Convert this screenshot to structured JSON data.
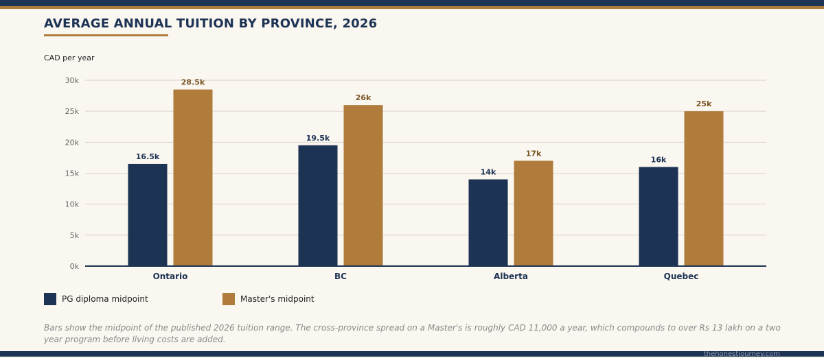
{
  "chart_data": {
    "type": "bar",
    "title": "AVERAGE ANNUAL TUITION BY PROVINCE, 2026",
    "ylabel": "CAD per year",
    "xlabel": "",
    "categories": [
      "Ontario",
      "BC",
      "Alberta",
      "Quebec"
    ],
    "series": [
      {
        "name": "PG diploma midpoint",
        "values": [
          16500,
          19500,
          14000,
          16000
        ],
        "labels": [
          "16.5k",
          "19.5k",
          "14k",
          "16k"
        ],
        "color": "#1c3354"
      },
      {
        "name": "Master's midpoint",
        "values": [
          28500,
          26000,
          17000,
          25000
        ],
        "labels": [
          "28.5k",
          "26k",
          "17k",
          "25k"
        ],
        "color": "#b07c3c"
      }
    ],
    "ylim": [
      0,
      30000
    ],
    "yticks": [
      0,
      5000,
      10000,
      15000,
      20000,
      25000,
      30000
    ],
    "ytick_labels": [
      "0k",
      "5k",
      "10k",
      "15k",
      "20k",
      "25k",
      "30k"
    ],
    "grid": true,
    "legend": "bottom-left"
  },
  "note": "Bars show the midpoint of the published 2026 tuition range. The cross-province spread on a Master's is roughly CAD 11,000 a year, which compounds to over Rs 13 lakh on a two year program before living costs are added.",
  "footer": "thehonestjourney.com",
  "colors": {
    "navy": "#1c3354",
    "gold": "#b07c3c",
    "background": "#faf6f0"
  }
}
